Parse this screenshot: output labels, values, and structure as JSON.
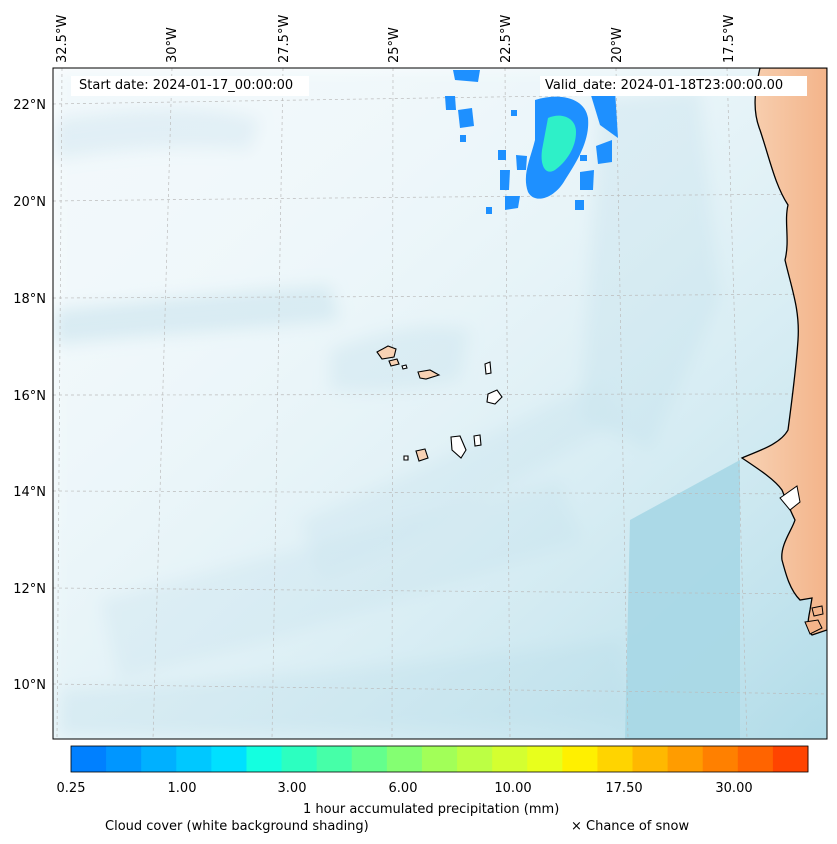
{
  "header": {
    "start_date": "Start date: 2024-01-17_00:00:00",
    "valid_date": "Valid_date: 2024-01-18T23:00:00.00"
  },
  "map": {
    "longitude_labels": [
      "32.5°W",
      "30°W",
      "27.5°W",
      "25°W",
      "22.5°W",
      "20°W",
      "17.5°W"
    ],
    "latitude_labels": [
      "22°N",
      "20°N",
      "18°N",
      "16°N",
      "14°N",
      "12°N",
      "10°N"
    ],
    "colors": {
      "land": "#f8d2b4",
      "land_dark": "#f3b48a",
      "cloud_light": "#e6f2f7",
      "cloud_mid": "#cde5ef",
      "cloud_dense": "#a9d8e6",
      "precip_low": "#1e90ff",
      "precip_mid": "#2ef0c8",
      "coast": "#000000"
    }
  },
  "colorbar": {
    "tick_labels": [
      "0.25",
      "1.00",
      "3.00",
      "6.00",
      "10.00",
      "17.50",
      "30.00"
    ],
    "colors": [
      "#0080ff",
      "#0096ff",
      "#00b0ff",
      "#00c8ff",
      "#00e0ff",
      "#14ffe0",
      "#2cffc0",
      "#46ffa8",
      "#64ff8c",
      "#84ff72",
      "#a2ff58",
      "#bcff44",
      "#d4ff30",
      "#e8ff1c",
      "#fff000",
      "#ffd400",
      "#ffb800",
      "#ff9c00",
      "#ff8000",
      "#ff6400",
      "#ff4400"
    ],
    "title": "1 hour accumulated precipitation (mm)"
  },
  "legend": {
    "cloud_cover": "Cloud cover (white background shading)",
    "snow": "× Chance of snow"
  }
}
